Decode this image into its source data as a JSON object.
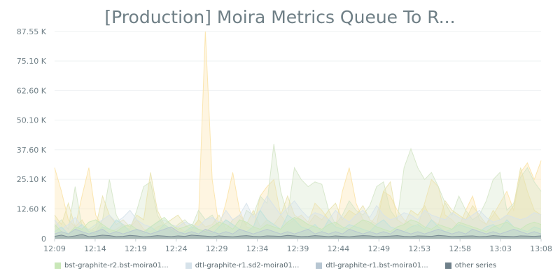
{
  "chart_data": {
    "type": "area",
    "title": "[Production] Moira Metrics Queue To R...",
    "xlabel": "",
    "ylabel": "",
    "x_ticks": [
      "12:09",
      "12:14",
      "12:19",
      "12:24",
      "12:29",
      "12:34",
      "12:39",
      "12:44",
      "12:49",
      "12:53",
      "12:58",
      "13:03",
      "13:08"
    ],
    "y_ticks": [
      "0",
      "12.60 K",
      "25.10 K",
      "37.60 K",
      "50.10 K",
      "62.60 K",
      "75.10 K",
      "87.55 K"
    ],
    "y_tick_values": [
      0,
      12600,
      25100,
      37600,
      50100,
      62600,
      75100,
      87550
    ],
    "ylim": [
      0,
      87550
    ],
    "grid": "horizontal",
    "legend_position": "bottom-left",
    "series": [
      {
        "name": "bst-graphite-r2.bst-moira01...",
        "color": "#c9e7b8",
        "values": [
          6000,
          3000,
          2000,
          5000,
          4000,
          7000,
          8000,
          6000,
          4000,
          3000,
          5000,
          6000,
          4000,
          3000,
          5000,
          7000,
          9000,
          6000,
          4000,
          5000,
          6000,
          4000,
          3000,
          5000,
          7000,
          6000,
          4000,
          8000,
          7000,
          5000,
          4000,
          6000,
          5000,
          4000,
          7000,
          9000,
          8000,
          6000,
          5000,
          4000,
          6000,
          7000,
          5000,
          4000,
          6000,
          8000,
          7000,
          5000,
          4000,
          3000,
          5000,
          6000,
          8000,
          7000,
          5000,
          4000,
          6000,
          5000,
          4000,
          7000,
          6000,
          5000,
          4000,
          3000,
          5000,
          6000,
          7000,
          5000,
          4000,
          6000,
          7000,
          6000
        ]
      },
      {
        "name": "dtl-graphite-r1.sd2-moira01...",
        "color": "#d6e2ea",
        "values": [
          8000,
          4000,
          6000,
          9000,
          5000,
          4000,
          6000,
          8000,
          10000,
          7000,
          9000,
          12000,
          8000,
          6000,
          5000,
          7000,
          8000,
          6000,
          5000,
          7000,
          6000,
          5000,
          8000,
          9000,
          7000,
          12000,
          8000,
          10000,
          15000,
          9000,
          12000,
          18000,
          14000,
          10000,
          13000,
          16000,
          12000,
          9000,
          11000,
          10000,
          8000,
          12000,
          9000,
          7000,
          10000,
          12000,
          9000,
          14000,
          10000,
          8000,
          9000,
          11000,
          10000,
          8000,
          12000,
          10000,
          9000,
          8000,
          11000,
          9000,
          8000,
          10000,
          12000,
          9000,
          7000,
          8000,
          10000,
          9000,
          8000,
          9000,
          11000,
          10000
        ]
      },
      {
        "name": "dtl-graphite-r1.bst-moira01...",
        "color": "#b7c6d2",
        "values": [
          2000,
          3000,
          2000,
          4000,
          3000,
          2000,
          3000,
          4000,
          2000,
          3000,
          2000,
          3000,
          4000,
          3000,
          2000,
          3000,
          4000,
          5000,
          3000,
          2000,
          3000,
          2000,
          4000,
          3000,
          2000,
          3000,
          2000,
          4000,
          3000,
          2000,
          3000,
          4000,
          3000,
          2000,
          3000,
          2000,
          3000,
          4000,
          2000,
          3000,
          2000,
          3000,
          2000,
          4000,
          3000,
          2000,
          3000,
          2000,
          3000,
          2000,
          4000,
          3000,
          2000,
          3000,
          2000,
          3000,
          4000,
          3000,
          2000,
          3000,
          2000,
          4000,
          3000,
          2000,
          3000,
          2000,
          3000,
          4000,
          3000,
          2000,
          3000,
          2000
        ]
      },
      {
        "name": "other series",
        "color": "#6e7f89",
        "values": [
          1000,
          1500,
          800,
          1200,
          1800,
          900,
          1100,
          1500,
          1300,
          900,
          1000,
          1400,
          1200,
          800,
          1000,
          1300,
          1100,
          900,
          1200,
          1000,
          1500,
          1300,
          1100,
          900,
          1200,
          1000,
          800,
          1100,
          1300,
          1000,
          900,
          1200,
          1100,
          1000,
          1400,
          1200,
          900,
          1000,
          1300,
          1100,
          900,
          1200,
          1000,
          800,
          1100,
          1300,
          1200,
          900,
          1000,
          1100,
          1300,
          1000,
          900,
          1200,
          1100,
          1000,
          1400,
          1200,
          900,
          1000,
          1100,
          1200,
          900,
          1000,
          1300,
          1100,
          1000,
          900,
          1200,
          1100,
          1000,
          1200
        ]
      },
      {
        "name": "",
        "color": "#fbe3a8",
        "values": [
          30000,
          20000,
          8000,
          5000,
          18000,
          30000,
          10000,
          5000,
          3000,
          4000,
          6000,
          5000,
          8000,
          4000,
          3000,
          5000,
          6000,
          4000,
          5000,
          3000,
          4000,
          8000,
          87550,
          25000,
          5000,
          15000,
          28000,
          12000,
          5000,
          4000,
          18000,
          22000,
          25000,
          10000,
          6000,
          8000,
          10000,
          7000,
          15000,
          12000,
          8000,
          5000,
          20000,
          30000,
          15000,
          8000,
          6000,
          10000,
          20000,
          18000,
          12000,
          8000,
          6000,
          5000,
          15000,
          25000,
          22000,
          10000,
          8000,
          5000,
          12000,
          18000,
          8000,
          6000,
          10000,
          15000,
          20000,
          12000,
          28000,
          32000,
          25000,
          33000
        ]
      },
      {
        "name": "",
        "color": "#d5e6c9",
        "values": [
          5000,
          8000,
          4000,
          22000,
          5000,
          4000,
          3000,
          8000,
          25000,
          10000,
          5000,
          4000,
          12000,
          22000,
          24000,
          10000,
          5000,
          3000,
          6000,
          8000,
          5000,
          12000,
          8000,
          10000,
          5000,
          8000,
          6000,
          4000,
          12000,
          10000,
          18000,
          15000,
          40000,
          20000,
          10000,
          30000,
          25000,
          22000,
          24000,
          23000,
          12000,
          6000,
          10000,
          16000,
          12000,
          10000,
          14000,
          22000,
          24000,
          12000,
          8000,
          30000,
          38000,
          30000,
          25000,
          28000,
          22000,
          15000,
          10000,
          18000,
          12000,
          8000,
          10000,
          16000,
          25000,
          28000,
          12000,
          15000,
          26000,
          30000,
          24000,
          20000
        ]
      },
      {
        "name": "",
        "color": "#e9e3b0",
        "values": [
          10000,
          6000,
          15000,
          5000,
          8000,
          3000,
          5000,
          18000,
          10000,
          6000,
          8000,
          5000,
          10000,
          8000,
          28000,
          12000,
          6000,
          8000,
          10000,
          6000,
          4000,
          8000,
          5000,
          6000,
          10000,
          4000,
          8000,
          10000,
          6000,
          12000,
          5000,
          8000,
          6000,
          10000,
          18000,
          10000,
          8000,
          6000,
          10000,
          8000,
          12000,
          15000,
          8000,
          12000,
          10000,
          14000,
          8000,
          6000,
          20000,
          24000,
          8000,
          6000,
          12000,
          10000,
          14000,
          8000,
          6000,
          16000,
          12000,
          10000,
          8000,
          14000,
          10000,
          6000,
          12000,
          8000,
          10000,
          14000,
          30000,
          20000,
          12000,
          10000
        ]
      },
      {
        "name": "",
        "color": "#bfe2dc",
        "values": [
          3000,
          5000,
          2000,
          4000,
          6000,
          3000,
          2000,
          5000,
          4000,
          8000,
          6000,
          3000,
          4000,
          2000,
          5000,
          3000,
          6000,
          4000,
          2000,
          3000,
          5000,
          4000,
          3000,
          2000,
          5000,
          8000,
          6000,
          4000,
          3000,
          5000,
          12000,
          8000,
          6000,
          4000,
          10000,
          8000,
          5000,
          4000,
          6000,
          3000,
          8000,
          5000,
          4000,
          6000,
          5000,
          4000,
          3000,
          6000,
          8000,
          5000,
          4000,
          3000,
          5000,
          6000,
          4000,
          8000,
          5000,
          3000,
          4000,
          6000,
          5000,
          4000,
          3000,
          5000,
          6000,
          4000,
          8000,
          5000,
          4000,
          3000,
          5000,
          4000
        ]
      }
    ]
  }
}
